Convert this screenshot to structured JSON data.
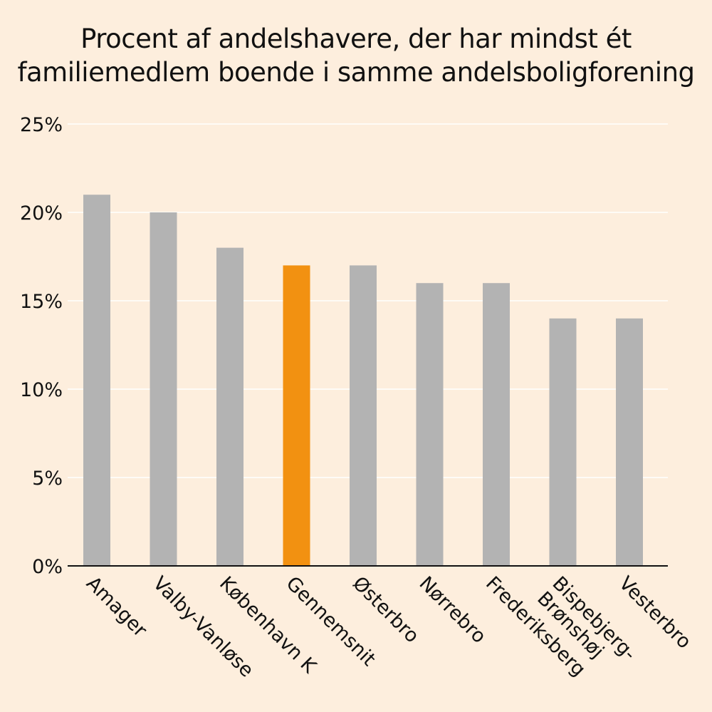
{
  "chart_data": {
    "type": "bar",
    "title_lines": [
      "Procent af andelshavere, der har mindst ét",
      "familiemedlem boende i samme andelsboligforening"
    ],
    "categories": [
      [
        "Amager"
      ],
      [
        "Valby-Vanløse"
      ],
      [
        "København K"
      ],
      [
        "Gennemsnit"
      ],
      [
        "Østerbro"
      ],
      [
        "Nørrebro"
      ],
      [
        "Frederiksberg"
      ],
      [
        "Bispebjerg-",
        "Brønshøj"
      ],
      [
        "Vesterbro"
      ]
    ],
    "values": [
      21,
      20,
      18,
      17,
      17,
      16,
      16,
      14,
      14
    ],
    "highlight_index": 3,
    "yticks": [
      "0%",
      "5%",
      "10%",
      "15%",
      "20%",
      "25%"
    ],
    "ylim": [
      0,
      25
    ],
    "grid": true,
    "colors": {
      "bar": "#b3b3b3",
      "highlight": "#f29111",
      "background": "#fdeedd",
      "grid": "#ffffff",
      "axis": "#111111"
    }
  }
}
